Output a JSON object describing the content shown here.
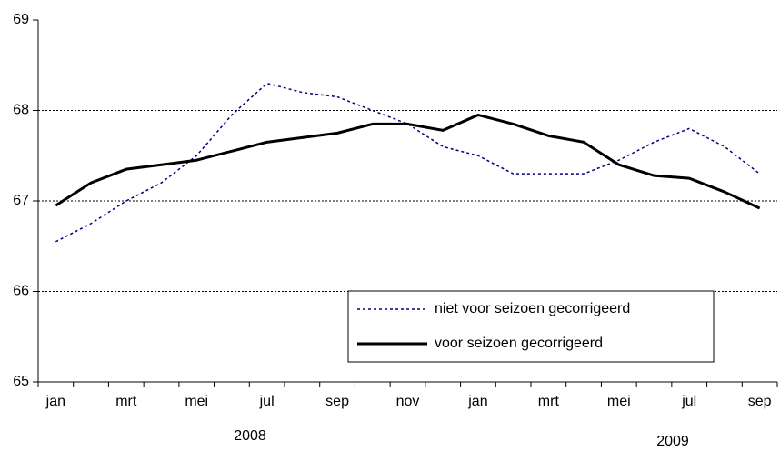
{
  "chart_data": {
    "type": "line",
    "categories": [
      "jan",
      null,
      "mrt",
      null,
      "mei",
      null,
      "jul",
      null,
      "sep",
      null,
      "nov",
      null,
      "jan",
      null,
      "mrt",
      null,
      "mei",
      null,
      "jul",
      null,
      "sep"
    ],
    "series": [
      {
        "name": "niet voor seizoen gecorrigeerd",
        "color": "#000080",
        "dash": true,
        "values": [
          66.55,
          66.75,
          67.0,
          67.2,
          67.5,
          67.95,
          68.3,
          68.2,
          68.15,
          68.0,
          67.85,
          67.6,
          67.5,
          67.3,
          67.3,
          67.3,
          67.45,
          67.65,
          67.8,
          67.6,
          67.3
        ]
      },
      {
        "name": "voor seizoen gecorrigeerd",
        "color": "#000000",
        "dash": false,
        "values": [
          66.95,
          67.2,
          67.35,
          67.4,
          67.45,
          67.55,
          67.65,
          67.7,
          67.75,
          67.85,
          67.85,
          67.78,
          67.95,
          67.85,
          67.72,
          67.65,
          67.4,
          67.28,
          67.25,
          67.1,
          66.92
        ]
      }
    ],
    "annotations": [
      "2008",
      "2009"
    ],
    "ylim": [
      65,
      69
    ],
    "yticks": [
      65,
      66,
      67,
      68,
      69
    ],
    "grid": true
  }
}
